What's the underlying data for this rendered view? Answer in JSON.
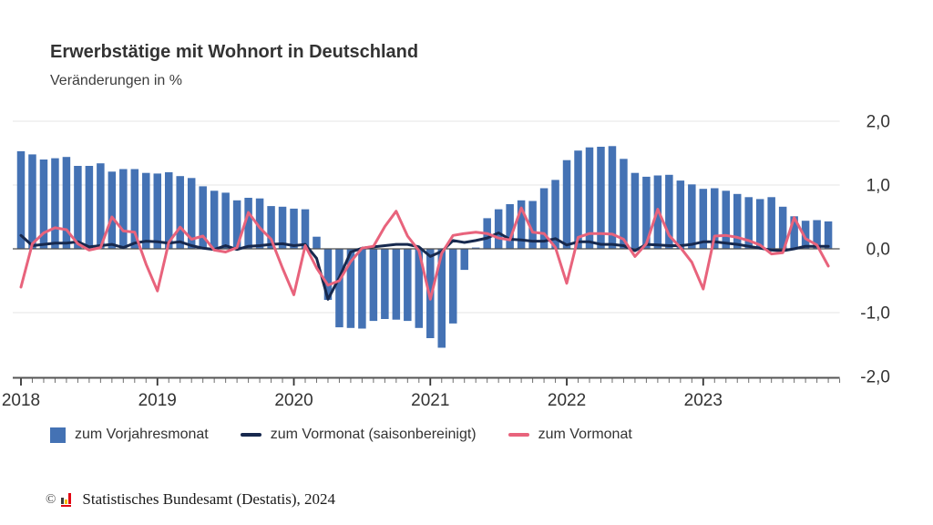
{
  "header": {
    "title": "Erwerbstätige mit Wohnort in Deutschland",
    "subtitle": "Veränderungen in %"
  },
  "legend": {
    "items": [
      {
        "label": "zum Vorjahresmonat",
        "swatch": "square",
        "color": "#4472b4"
      },
      {
        "label": "zum Vormonat (saisonbereinigt)",
        "swatch": "line",
        "color": "#17294e"
      },
      {
        "label": "zum Vormonat",
        "swatch": "line",
        "color": "#e8637c"
      }
    ]
  },
  "footer": {
    "copyright": "©",
    "source": "Statistisches Bundesamt (Destatis), 2024",
    "logo_colors": [
      "#3c3c3b",
      "#f5bd0c",
      "#e30613"
    ],
    "logo_underline": "#e30613"
  },
  "chart_data": {
    "type": "bar+line",
    "title": "Erwerbstätige mit Wohnort in Deutschland",
    "subtitle": "Veränderungen in %",
    "frequency": "monthly",
    "x_start": "2018-01",
    "x_end": "2023-12",
    "year_labels": [
      "2018",
      "2019",
      "2020",
      "2021",
      "2022",
      "2023"
    ],
    "ylim": [
      -2,
      2
    ],
    "ytick_values": [
      2,
      1,
      0,
      -1,
      -2
    ],
    "ytick_labels": [
      "2,0",
      "1,0",
      "0,0",
      "-1,0",
      "-2,0"
    ],
    "grid": true,
    "legend_position": "bottom",
    "colors": {
      "bar": "#4472b4",
      "line_sa": "#17294e",
      "line_mom": "#e8637c",
      "gridline": "#e4e4e4",
      "zero_line": "#4d4d4d",
      "axis": "#555555",
      "tick": "#6e6e6e",
      "year_tick": "#333333",
      "label": "#333333"
    },
    "series": [
      {
        "name": "zum Vorjahresmonat",
        "type": "bar",
        "color": "#4472b4",
        "values": [
          1.53,
          1.48,
          1.4,
          1.42,
          1.44,
          1.3,
          1.3,
          1.34,
          1.21,
          1.25,
          1.25,
          1.19,
          1.18,
          1.2,
          1.14,
          1.11,
          0.98,
          0.91,
          0.88,
          0.76,
          0.8,
          0.79,
          0.67,
          0.66,
          0.63,
          0.62,
          0.19,
          -0.8,
          -1.23,
          -1.24,
          -1.25,
          -1.13,
          -1.1,
          -1.11,
          -1.13,
          -1.24,
          -1.4,
          -1.55,
          -1.17,
          -0.33,
          0.02,
          0.48,
          0.62,
          0.7,
          0.76,
          0.75,
          0.95,
          1.08,
          1.39,
          1.54,
          1.59,
          1.6,
          1.61,
          1.41,
          1.19,
          1.13,
          1.15,
          1.16,
          1.07,
          1.01,
          0.94,
          0.95,
          0.91,
          0.86,
          0.81,
          0.78,
          0.81,
          0.66,
          0.51,
          0.44,
          0.45,
          0.43
        ]
      },
      {
        "name": "zum Vormonat (saisonbereinigt)",
        "type": "line",
        "color": "#17294e",
        "values": [
          0.21,
          0.05,
          0.07,
          0.09,
          0.09,
          0.11,
          0.03,
          0.05,
          0.07,
          0.02,
          0.09,
          0.12,
          0.11,
          0.09,
          0.11,
          0.05,
          0.01,
          -0.01,
          0.05,
          -0.01,
          0.04,
          0.05,
          0.07,
          0.08,
          0.05,
          0.07,
          -0.15,
          -0.79,
          -0.45,
          -0.05,
          0.01,
          0.03,
          0.05,
          0.07,
          0.07,
          0.03,
          -0.12,
          -0.04,
          0.13,
          0.1,
          0.13,
          0.17,
          0.25,
          0.15,
          0.14,
          0.12,
          0.12,
          0.16,
          0.06,
          0.11,
          0.11,
          0.07,
          0.07,
          0.05,
          -0.03,
          0.07,
          0.06,
          0.05,
          0.05,
          0.07,
          0.11,
          0.11,
          0.09,
          0.07,
          0.04,
          0.01,
          -0.02,
          -0.03,
          0.0,
          0.04,
          0.04,
          0.04
        ]
      },
      {
        "name": "zum Vormonat",
        "type": "line",
        "color": "#e8637c",
        "values": [
          -0.6,
          0.08,
          0.25,
          0.33,
          0.3,
          0.08,
          -0.02,
          0.02,
          0.5,
          0.28,
          0.26,
          -0.24,
          -0.66,
          0.1,
          0.34,
          0.15,
          0.2,
          -0.02,
          -0.05,
          0.02,
          0.57,
          0.33,
          0.15,
          -0.3,
          -0.72,
          0.05,
          -0.3,
          -0.57,
          -0.5,
          -0.2,
          0.01,
          0.04,
          0.35,
          0.59,
          0.2,
          -0.03,
          -0.79,
          -0.07,
          0.21,
          0.24,
          0.26,
          0.24,
          0.17,
          0.14,
          0.64,
          0.26,
          0.24,
          0.02,
          -0.54,
          0.18,
          0.24,
          0.24,
          0.23,
          0.15,
          -0.12,
          0.08,
          0.62,
          0.21,
          0.02,
          -0.21,
          -0.63,
          0.2,
          0.21,
          0.18,
          0.13,
          0.06,
          -0.08,
          -0.06,
          0.49,
          0.16,
          0.06,
          -0.27
        ]
      }
    ]
  }
}
